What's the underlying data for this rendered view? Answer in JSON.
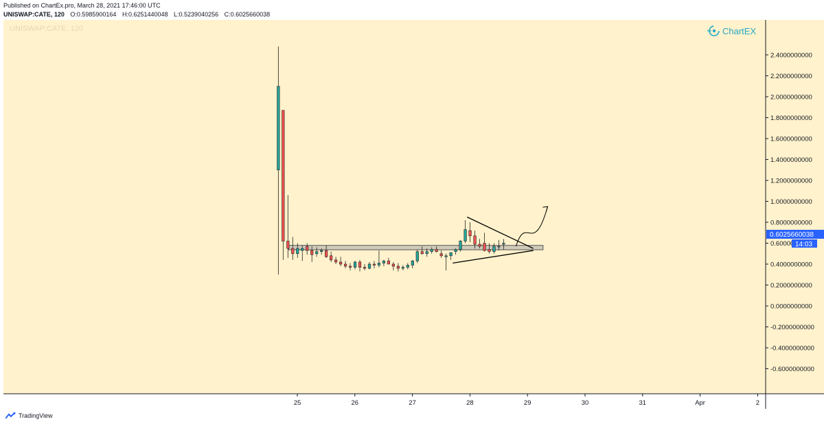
{
  "header": {
    "published": "Published on ChartEx.pro, March 28, 2021 17:46:00 UTC",
    "symbol": "UNISWAP:CATE, 120",
    "open": "O:0.5985900164",
    "high": "H:0.6251440048",
    "low": "L:0.5239040256",
    "close": "C:0.6025660038"
  },
  "watermark": "UNISWAP:CATE, 120",
  "logo": {
    "text": "ChartEX",
    "icon": "chartex-logo-icon"
  },
  "footer": {
    "brand": "TradingView",
    "icon": "tradingview-logo-icon"
  },
  "price_label": {
    "value": "0.6025660038",
    "countdown": "14:03"
  },
  "colors": {
    "background": "#fff2cc",
    "up": "#26a69a",
    "down": "#ef5350",
    "accent": "#2962ff",
    "logo": "#2aa8c4"
  },
  "chart_data": {
    "type": "candlestick",
    "ylim": [
      -0.72,
      2.47
    ],
    "yticks": [
      "2.4000000000",
      "2.2000000000",
      "2.0000000000",
      "1.8000000000",
      "1.6000000000",
      "1.4000000000",
      "1.2000000000",
      "1.0000000000",
      "0.8000000000",
      "0.6000000000",
      "0.4000000000",
      "0.2000000000",
      "0.0000000000",
      "-0.2000000000",
      "-0.4000000000",
      "-0.6000000000"
    ],
    "ytick_values": [
      2.4,
      2.2,
      2.0,
      1.8,
      1.6,
      1.4,
      1.2,
      1.0,
      0.8,
      0.6,
      0.4,
      0.2,
      0.0,
      -0.2,
      -0.4,
      -0.6
    ],
    "xlim": [
      24.4,
      2.0
    ],
    "xticks": [
      "25",
      "26",
      "27",
      "28",
      "29",
      "30",
      "31",
      "Apr",
      "2"
    ],
    "xtick_values": [
      25,
      26,
      27,
      28,
      29,
      30,
      31,
      32,
      33
    ],
    "candle_step_days": 0.0833,
    "first_candle_day": 24.67,
    "candles": [
      [
        1.3,
        2.48,
        0.3,
        2.1
      ],
      [
        1.87,
        1.87,
        0.44,
        0.62
      ],
      [
        0.62,
        1.06,
        0.46,
        0.55
      ],
      [
        0.55,
        0.66,
        0.44,
        0.5
      ],
      [
        0.5,
        0.6,
        0.46,
        0.55
      ],
      [
        0.53,
        0.58,
        0.43,
        0.55
      ],
      [
        0.57,
        0.6,
        0.49,
        0.53
      ],
      [
        0.53,
        0.57,
        0.42,
        0.49
      ],
      [
        0.5,
        0.56,
        0.47,
        0.52
      ],
      [
        0.52,
        0.55,
        0.49,
        0.53
      ],
      [
        0.53,
        0.58,
        0.46,
        0.47
      ],
      [
        0.48,
        0.52,
        0.42,
        0.44
      ],
      [
        0.44,
        0.47,
        0.4,
        0.42
      ],
      [
        0.42,
        0.47,
        0.38,
        0.4
      ],
      [
        0.4,
        0.43,
        0.36,
        0.38
      ],
      [
        0.38,
        0.41,
        0.34,
        0.37
      ],
      [
        0.37,
        0.43,
        0.35,
        0.42
      ],
      [
        0.42,
        0.44,
        0.33,
        0.37
      ],
      [
        0.37,
        0.4,
        0.34,
        0.36
      ],
      [
        0.36,
        0.42,
        0.35,
        0.4
      ],
      [
        0.4,
        0.43,
        0.36,
        0.39
      ],
      [
        0.39,
        0.53,
        0.37,
        0.41
      ],
      [
        0.41,
        0.44,
        0.38,
        0.43
      ],
      [
        0.43,
        0.46,
        0.41,
        0.4
      ],
      [
        0.4,
        0.42,
        0.34,
        0.38
      ],
      [
        0.38,
        0.41,
        0.33,
        0.36
      ],
      [
        0.36,
        0.39,
        0.34,
        0.37
      ],
      [
        0.37,
        0.41,
        0.35,
        0.39
      ],
      [
        0.39,
        0.44,
        0.36,
        0.43
      ],
      [
        0.43,
        0.54,
        0.41,
        0.52
      ],
      [
        0.52,
        0.57,
        0.49,
        0.5
      ],
      [
        0.5,
        0.55,
        0.47,
        0.52
      ],
      [
        0.52,
        0.56,
        0.5,
        0.54
      ],
      [
        0.54,
        0.57,
        0.51,
        0.52
      ],
      [
        0.5,
        0.53,
        0.46,
        0.48
      ],
      [
        0.47,
        0.5,
        0.34,
        0.48
      ],
      [
        0.48,
        0.5,
        0.44,
        0.51
      ],
      [
        0.52,
        0.55,
        0.49,
        0.54
      ],
      [
        0.54,
        0.63,
        0.52,
        0.62
      ],
      [
        0.62,
        0.82,
        0.6,
        0.73
      ],
      [
        0.72,
        0.8,
        0.61,
        0.67
      ],
      [
        0.67,
        0.72,
        0.55,
        0.59
      ],
      [
        0.59,
        0.64,
        0.55,
        0.57
      ],
      [
        0.6,
        0.7,
        0.52,
        0.53
      ],
      [
        0.54,
        0.6,
        0.5,
        0.52
      ],
      [
        0.52,
        0.6,
        0.5,
        0.57
      ],
      [
        0.57,
        0.63,
        0.53,
        0.57
      ],
      [
        0.59,
        0.64,
        0.54,
        0.6
      ]
    ],
    "drawings": {
      "support_zone": {
        "y": [
          0.537,
          0.579
        ],
        "x": [
          24.85,
          29.27
        ]
      },
      "triangle_upper": {
        "from": [
          27.95,
          0.85
        ],
        "to": [
          29.1,
          0.55
        ]
      },
      "triangle_lower": {
        "from": [
          27.7,
          0.41
        ],
        "to": [
          29.1,
          0.53
        ]
      },
      "forecast_arrow": [
        [
          28.8,
          0.57
        ],
        [
          28.98,
          0.69
        ],
        [
          29.1,
          0.58
        ],
        [
          29.35,
          0.95
        ]
      ]
    }
  }
}
